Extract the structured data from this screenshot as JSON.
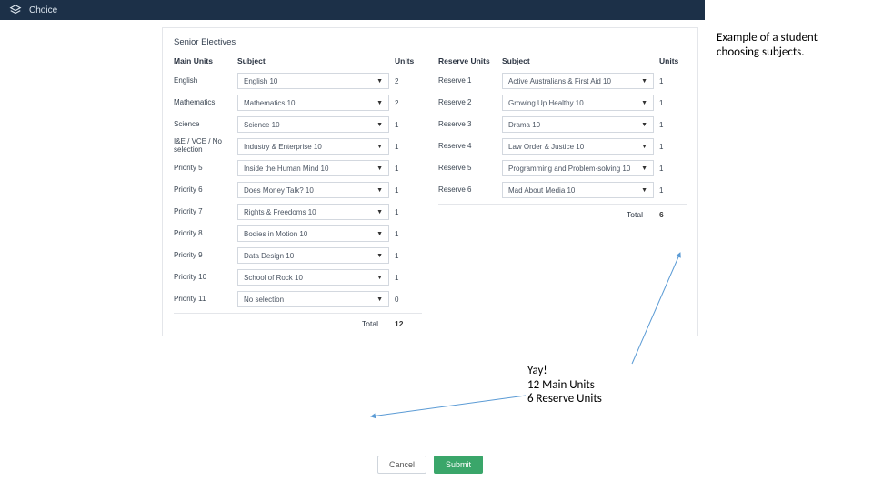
{
  "topbar": {
    "title": "Choice"
  },
  "section_title": "Senior Electives",
  "headers": {
    "main_units": "Main Units",
    "subject": "Subject",
    "units": "Units",
    "reserve_units": "Reserve Units"
  },
  "main_rows": [
    {
      "label": "English",
      "subject": "English 10",
      "units": "2"
    },
    {
      "label": "Mathematics",
      "subject": "Mathematics 10",
      "units": "2"
    },
    {
      "label": "Science",
      "subject": "Science 10",
      "units": "1"
    },
    {
      "label": "I&E / VCE / No selection",
      "subject": "Industry & Enterprise 10",
      "units": "1"
    },
    {
      "label": "Priority 5",
      "subject": "Inside the Human Mind 10",
      "units": "1"
    },
    {
      "label": "Priority 6",
      "subject": "Does Money Talk? 10",
      "units": "1"
    },
    {
      "label": "Priority 7",
      "subject": "Rights & Freedoms 10",
      "units": "1"
    },
    {
      "label": "Priority 8",
      "subject": "Bodies in Motion 10",
      "units": "1"
    },
    {
      "label": "Priority 9",
      "subject": "Data Design 10",
      "units": "1"
    },
    {
      "label": "Priority 10",
      "subject": "School of Rock 10",
      "units": "1"
    },
    {
      "label": "Priority 11",
      "subject": "No selection",
      "units": "0"
    }
  ],
  "reserve_rows": [
    {
      "label": "Reserve 1",
      "subject": "Active Australians & First Aid 10",
      "units": "1"
    },
    {
      "label": "Reserve 2",
      "subject": "Growing Up Healthy 10",
      "units": "1"
    },
    {
      "label": "Reserve 3",
      "subject": "Drama 10",
      "units": "1"
    },
    {
      "label": "Reserve 4",
      "subject": "Law Order & Justice 10",
      "units": "1"
    },
    {
      "label": "Reserve 5",
      "subject": "Programming and Problem-solving 10",
      "units": "1"
    },
    {
      "label": "Reserve 6",
      "subject": "Mad About Media 10",
      "units": "1"
    }
  ],
  "totals": {
    "label": "Total",
    "main": "12",
    "reserve": "6"
  },
  "buttons": {
    "cancel": "Cancel",
    "submit": "Submit"
  },
  "annotations": {
    "a1": "Example of a student choosing subjects.",
    "a2_l1": "Yay!",
    "a2_l2": "12 Main Units",
    "a2_l3": "6 Reserve Units"
  },
  "colors": {
    "topbar_bg": "#1c3048",
    "border": "#e4e6ea",
    "select_border": "#d3d8df",
    "submit_bg": "#3aa66a",
    "arrow": "#5b9bd5"
  }
}
